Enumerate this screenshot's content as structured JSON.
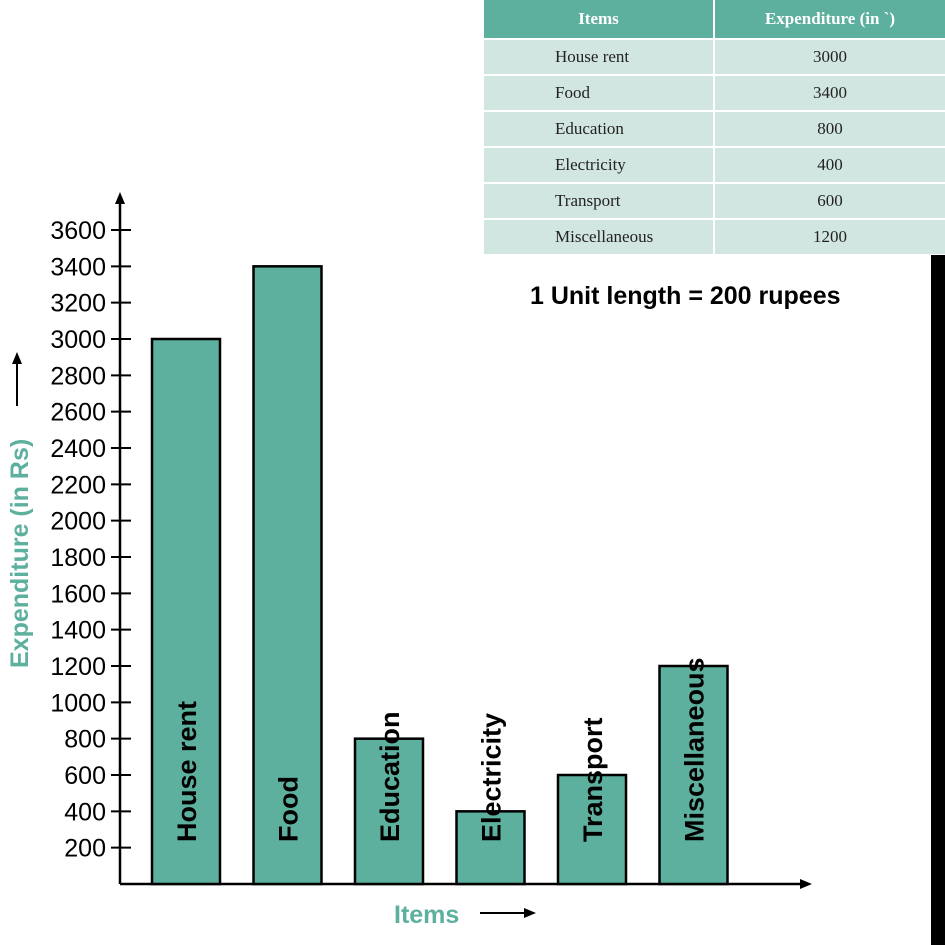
{
  "table": {
    "headers": [
      "Items",
      "Expenditure (in `)"
    ],
    "rows": [
      {
        "item": "House rent",
        "value": "3000"
      },
      {
        "item": "Food",
        "value": "3400"
      },
      {
        "item": "Education",
        "value": "800"
      },
      {
        "item": "Electricity",
        "value": "400"
      },
      {
        "item": "Transport",
        "value": "600"
      },
      {
        "item": "Miscellaneous",
        "value": "1200"
      }
    ]
  },
  "note": "1 Unit length = 200 rupees",
  "colors": {
    "bar": "#5daf9e",
    "label": "#5daf9e",
    "table_header": "#5daf9e",
    "table_cell": "#d2e6e1"
  },
  "chart_data": {
    "type": "bar",
    "categories": [
      "House rent",
      "Food",
      "Education",
      "Electricity",
      "Transport",
      "Miscellaneous"
    ],
    "values": [
      3000,
      3400,
      800,
      400,
      600,
      1200
    ],
    "title": "",
    "xlabel": "Items",
    "ylabel": "Expenditure (in Rs)",
    "ylim": [
      0,
      3600
    ],
    "yticks": [
      200,
      400,
      600,
      800,
      1000,
      1200,
      1400,
      1600,
      1800,
      2000,
      2200,
      2400,
      2600,
      2800,
      3000,
      3200,
      3400,
      3600
    ],
    "grid": false,
    "bar_labels_inside": true
  }
}
